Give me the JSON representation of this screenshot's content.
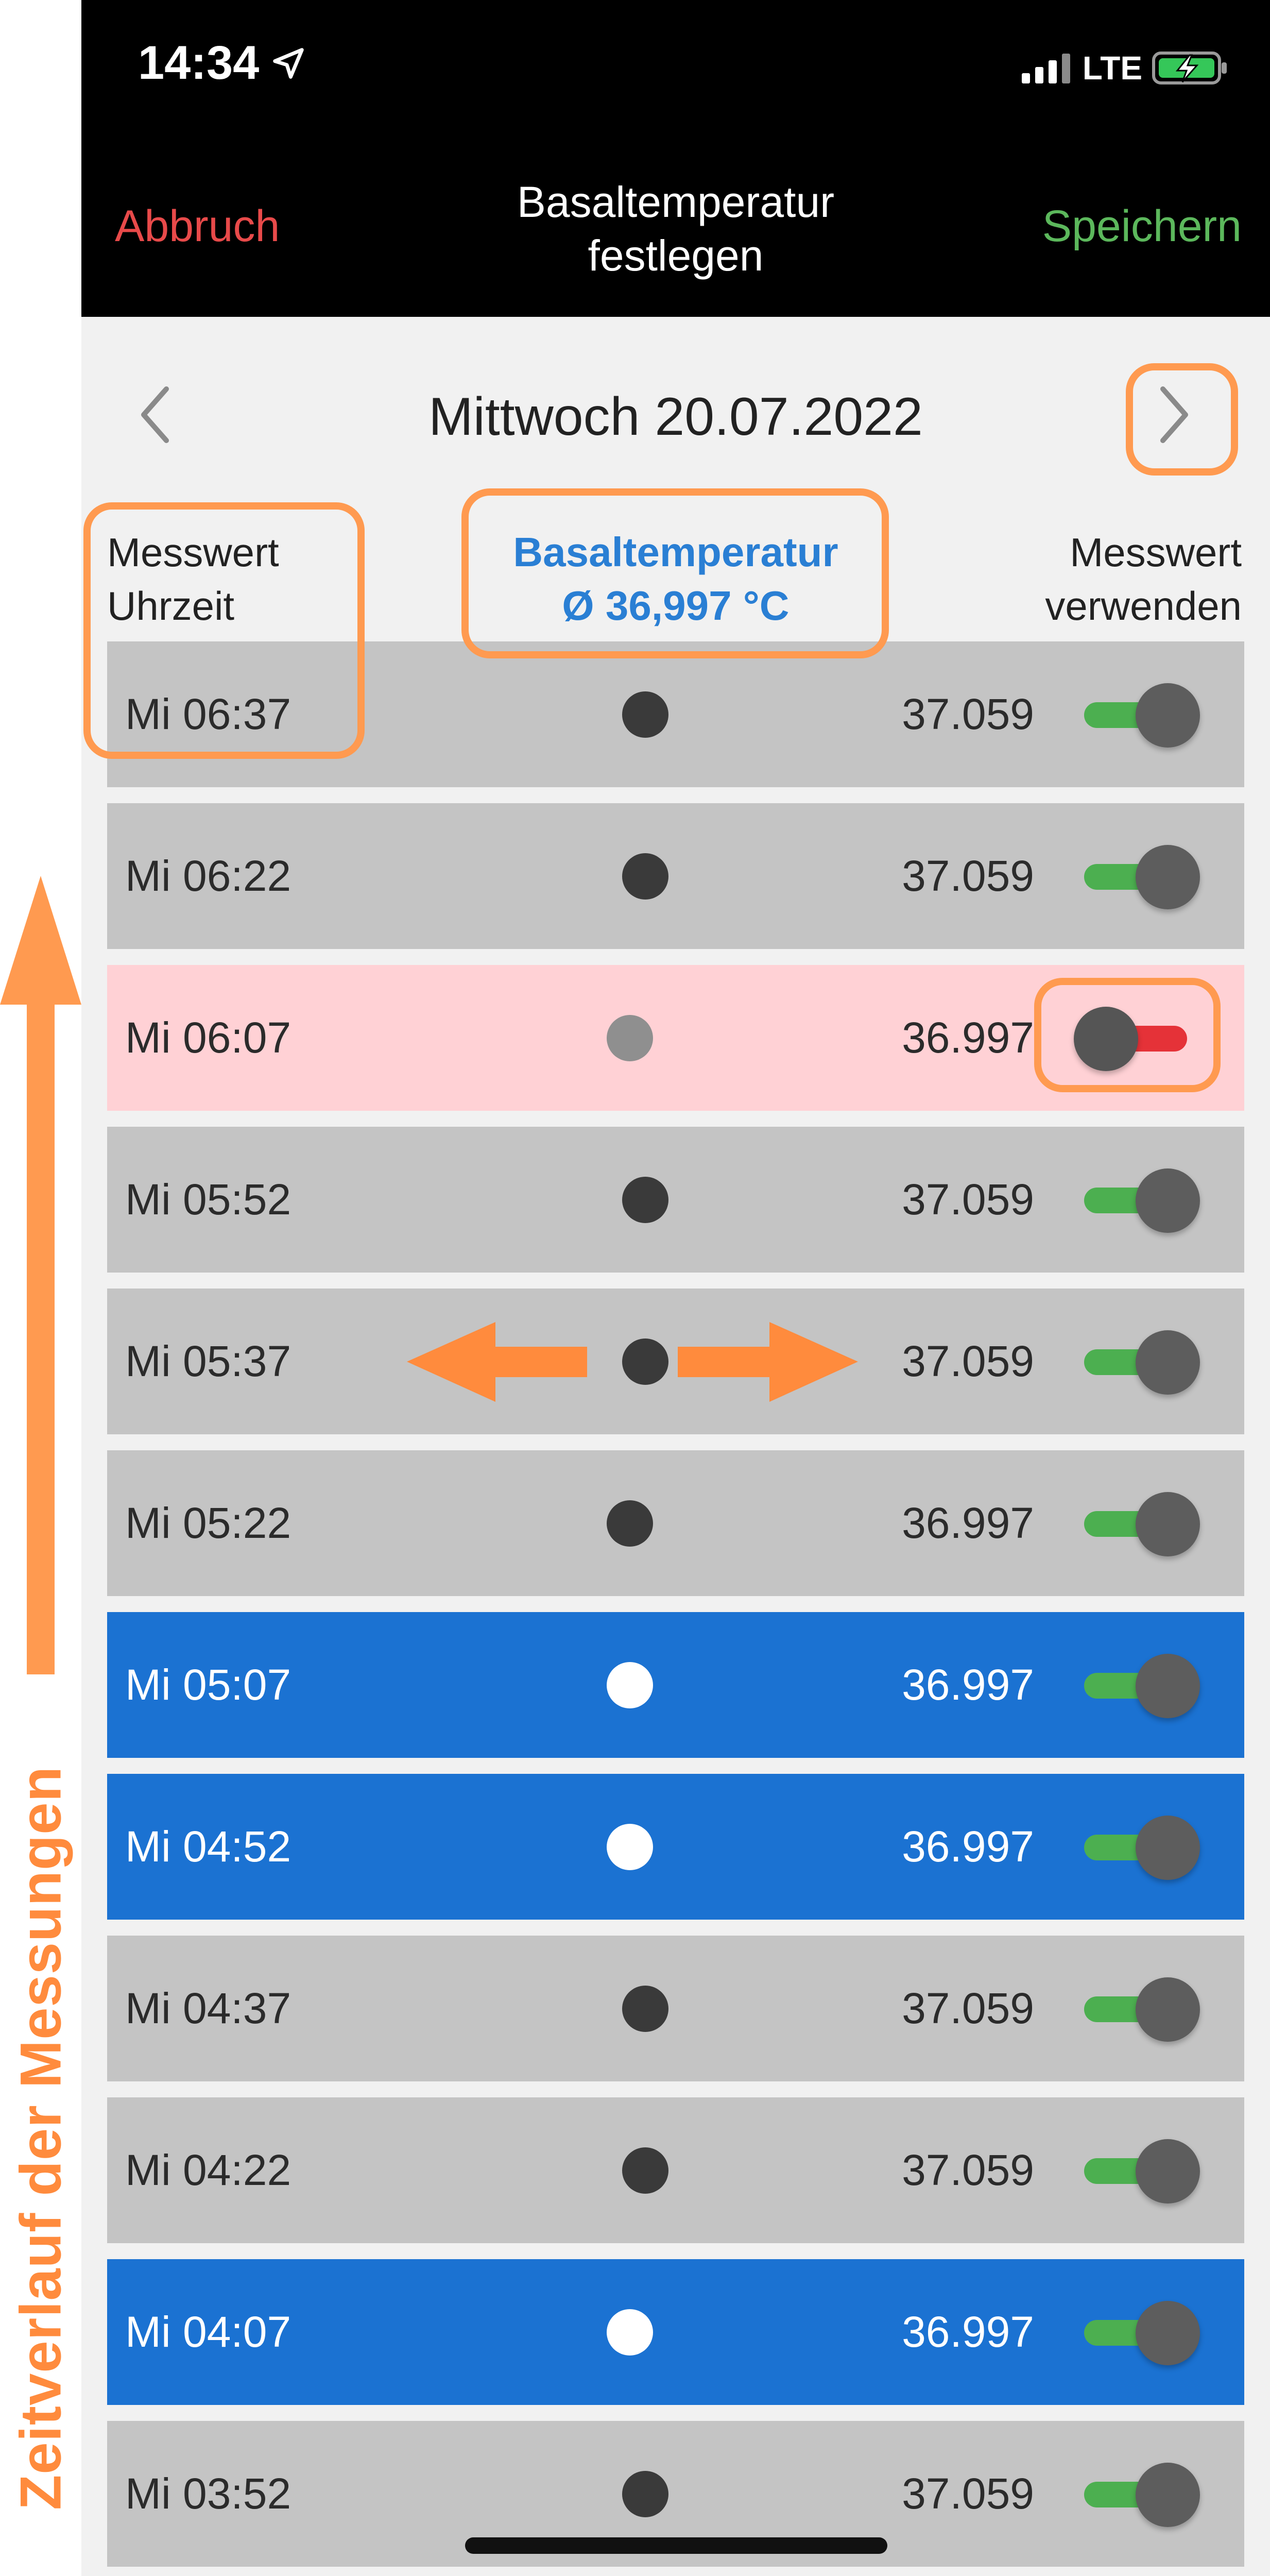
{
  "annotation": {
    "timeline_label": "Zeitverlauf der Messungen",
    "accent_color": "#ff9a50"
  },
  "status_bar": {
    "time": "14:34",
    "network": "LTE",
    "location_icon": "location-arrow-icon",
    "battery_icon": "battery-charging-icon"
  },
  "header": {
    "cancel_label": "Abbruch",
    "title_line1": "Basaltemperatur",
    "title_line2": "festlegen",
    "save_label": "Speichern",
    "cancel_color": "#e84a4a",
    "save_color": "#5cb85c"
  },
  "date_nav": {
    "date": "Mittwoch 20.07.2022",
    "prev_icon": "chevron-left-icon",
    "next_icon": "chevron-right-icon"
  },
  "columns": {
    "left_line1": "Messwert",
    "left_line2": "Uhrzeit",
    "mid_line1": "Basaltemperatur",
    "mid_line2": "Ø 36,997 °C",
    "right_line1": "Messwert",
    "right_line2": "verwenden",
    "accent_color": "#2a7fd4"
  },
  "measurements": [
    {
      "time": "Mi 06:37",
      "value": "37.059",
      "highlight": "none",
      "dot": "right",
      "use": true
    },
    {
      "time": "Mi 06:22",
      "value": "37.059",
      "highlight": "none",
      "dot": "right",
      "use": true
    },
    {
      "time": "Mi 06:07",
      "value": "36.997",
      "highlight": "excluded",
      "dot": "center",
      "use": false
    },
    {
      "time": "Mi 05:52",
      "value": "37.059",
      "highlight": "none",
      "dot": "right",
      "use": true
    },
    {
      "time": "Mi 05:37",
      "value": "37.059",
      "highlight": "none",
      "dot": "right",
      "use": true
    },
    {
      "time": "Mi 05:22",
      "value": "36.997",
      "highlight": "none",
      "dot": "center",
      "use": true
    },
    {
      "time": "Mi 05:07",
      "value": "36.997",
      "highlight": "selected",
      "dot": "center",
      "use": true
    },
    {
      "time": "Mi 04:52",
      "value": "36.997",
      "highlight": "selected",
      "dot": "center",
      "use": true
    },
    {
      "time": "Mi 04:37",
      "value": "37.059",
      "highlight": "none",
      "dot": "right",
      "use": true
    },
    {
      "time": "Mi 04:22",
      "value": "37.059",
      "highlight": "none",
      "dot": "right",
      "use": true
    },
    {
      "time": "Mi 04:07",
      "value": "36.997",
      "highlight": "selected",
      "dot": "center",
      "use": true
    },
    {
      "time": "Mi 03:52",
      "value": "37.059",
      "highlight": "none",
      "dot": "right",
      "use": true
    }
  ],
  "colors": {
    "row_gray": "#c4c4c4",
    "row_blue": "#1b72d2",
    "row_pink": "#ffd1d5",
    "toggle_on": "#4caf50",
    "toggle_off": "#e53238"
  }
}
